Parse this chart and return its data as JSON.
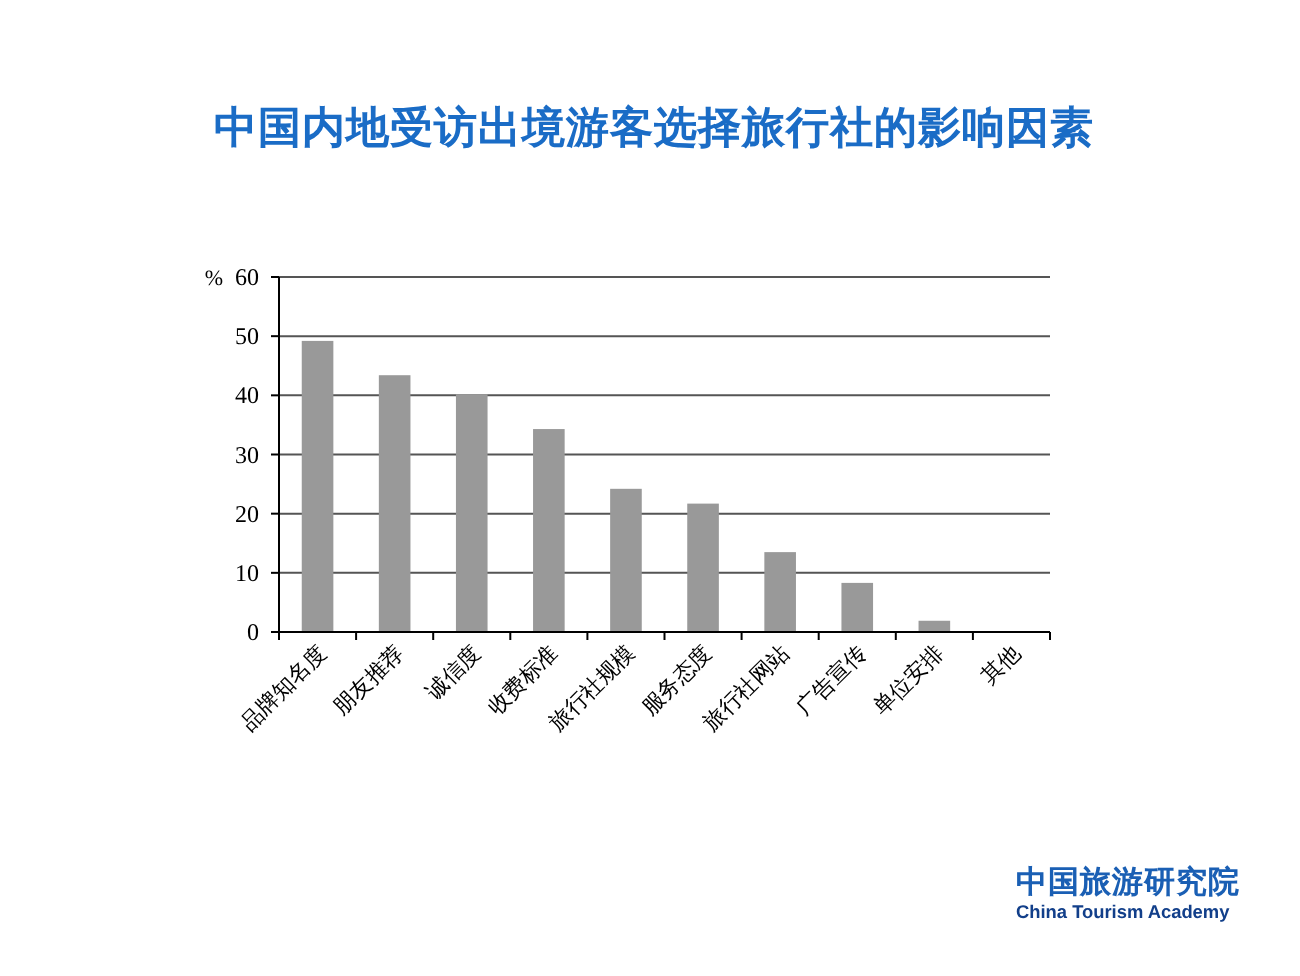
{
  "chart_data": {
    "type": "bar",
    "title": "中国内地受访出境游客选择旅行社的影响因素",
    "ylabel": "%",
    "categories": [
      "品牌知名度",
      "朋友推荐",
      "诚信度",
      "收费标准",
      "旅行社规模",
      "服务态度",
      "旅行社网站",
      "广告宣传",
      "单位安排",
      "其他"
    ],
    "values": [
      49.2,
      43.4,
      40.2,
      34.3,
      24.2,
      21.7,
      13.5,
      8.3,
      1.9,
      0
    ],
    "color": "#999999",
    "ylim": [
      0,
      60
    ],
    "yticks": [
      0,
      10,
      20,
      30,
      40,
      50,
      60
    ],
    "grid": "y",
    "annotations": [
      "中国旅游研究院",
      "China Tourism Academy"
    ]
  }
}
